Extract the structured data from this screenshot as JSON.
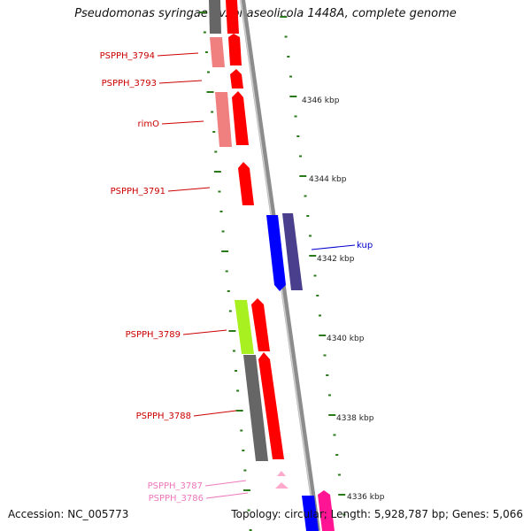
{
  "title": "Pseudomonas syringae pv. phaseolicola 1448A, complete genome",
  "footer": {
    "accession": "Accession: NC_005773",
    "summary": "Topology: circular; Length: 5,928,787 bp; Genes: 5,066"
  },
  "colors": {
    "backbone": "#8c8c8c",
    "tick": "#2a7a1a",
    "red": "#ff0000",
    "light_red": "#f08080",
    "gray": "#666666",
    "lime": "#a8f020",
    "blue": "#0000ff",
    "slate": "#4a3f8c",
    "pink": "#ff1493",
    "light_pink": "#ffaacc",
    "label_red": "#cc0000",
    "label_blue": "#0000cc",
    "label_pink": "#ee77bb"
  },
  "ticks": [
    "4346 kbp",
    "4344 kbp",
    "4342 kbp",
    "4340 kbp",
    "4338 kbp",
    "4336 kbp"
  ],
  "gene_labels": [
    {
      "text": "PSPPH_3794",
      "color": "label_red"
    },
    {
      "text": "PSPPH_3793",
      "color": "label_red"
    },
    {
      "text": "rimO",
      "color": "label_red"
    },
    {
      "text": "PSPPH_3791",
      "color": "label_red"
    },
    {
      "text": "kup",
      "color": "label_blue"
    },
    {
      "text": "PSPPH_3789",
      "color": "label_red"
    },
    {
      "text": "PSPPH_3788",
      "color": "label_red"
    },
    {
      "text": "PSPPH_3787",
      "color": "label_pink"
    },
    {
      "text": "PSPPH_3786",
      "color": "label_pink"
    }
  ]
}
